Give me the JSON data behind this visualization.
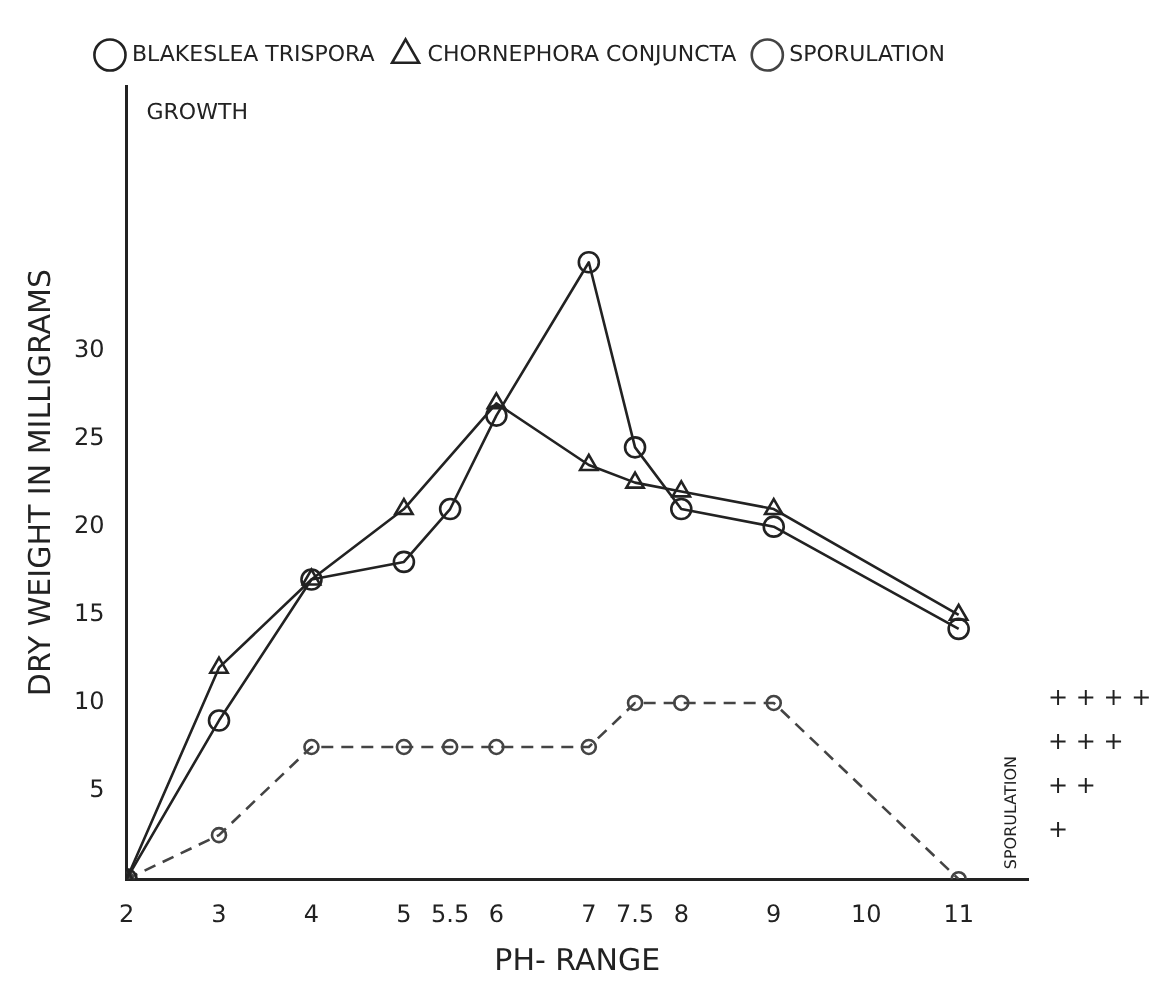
{
  "chart_data": {
    "type": "line",
    "xlabel": "PH- RANGE",
    "ylabel": "DRY WEIGHT IN MILLIGRAMS",
    "y2label": "SPORULATION",
    "annotations": [
      "GROWTH",
      "+",
      "+ +",
      "+ + +",
      "+ + + +"
    ],
    "xlim": [
      2,
      11.75
    ],
    "xticks": [
      2,
      3,
      4,
      5,
      5.5,
      6,
      7,
      7.5,
      8,
      9,
      10,
      11
    ],
    "ylim": [
      0,
      45
    ],
    "yticks": [
      5,
      10,
      15,
      20,
      25,
      30
    ],
    "grid": false,
    "legend": "top",
    "series": [
      {
        "name": "BLAKESLEA TRISPORA",
        "color": "#222222",
        "marker": "circle",
        "line_style": "solid",
        "x": [
          2,
          3,
          4,
          5,
          5.5,
          6,
          7,
          7.5,
          8,
          9,
          11
        ],
        "values": [
          0,
          9,
          17,
          18,
          21,
          26.3,
          35,
          24.5,
          21,
          20,
          14.2
        ]
      },
      {
        "name": "CHORNEPHORA CONJUNCTA",
        "color": "#222222",
        "marker": "triangle",
        "line_style": "solid",
        "x": [
          2,
          3,
          4,
          5,
          6,
          7,
          7.5,
          8,
          9,
          11
        ],
        "values": [
          0,
          12,
          17,
          21,
          27,
          23.5,
          22.5,
          22,
          21,
          15
        ]
      },
      {
        "name": "SPORULATION",
        "color": "#444444",
        "marker": "circle",
        "line_style": "dashed",
        "x": [
          2,
          3,
          4,
          5,
          5.5,
          6,
          7,
          7.5,
          8,
          9,
          11
        ],
        "values": [
          0,
          2.5,
          7.5,
          7.5,
          7.5,
          7.5,
          7.5,
          10,
          10,
          10,
          0
        ]
      }
    ]
  }
}
